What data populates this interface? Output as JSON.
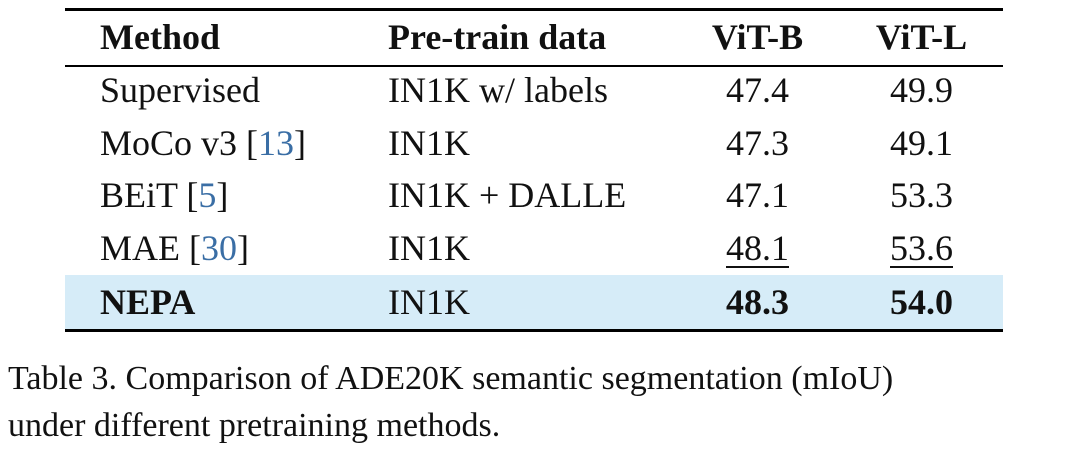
{
  "table": {
    "header": [
      "Method",
      "Pre-train data",
      "ViT-B",
      "ViT-L"
    ],
    "rows": [
      {
        "method": [
          "Supervised"
        ],
        "data": "IN1K w/ labels",
        "vitb": "47.4",
        "vitl": "49.9"
      },
      {
        "method": [
          "MoCo v3 [",
          "13",
          "]"
        ],
        "data": "IN1K",
        "vitb": "47.3",
        "vitl": "49.1"
      },
      {
        "method": [
          "BEiT [",
          "5",
          "]"
        ],
        "data": "IN1K + DALLE",
        "vitb": "47.1",
        "vitl": "53.3"
      },
      {
        "method": [
          "MAE [",
          "30",
          "]"
        ],
        "data": "IN1K",
        "vitb": "48.1",
        "vitl": "53.6"
      },
      {
        "method": [
          "NEPA"
        ],
        "data": "IN1K",
        "vitb": "48.3",
        "vitl": "54.0"
      }
    ]
  },
  "caption": [
    "Table 3. Comparison of ADE20K semantic segmentation (mIoU)",
    "under different pretraining methods."
  ]
}
